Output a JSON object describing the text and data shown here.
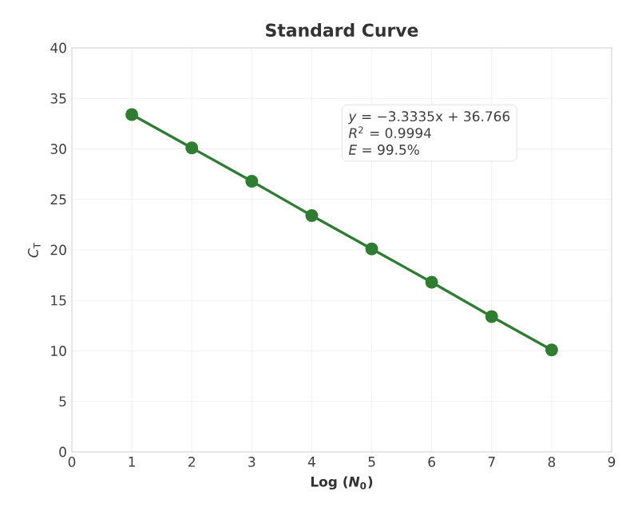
{
  "chart_data": {
    "type": "line",
    "title": "Standard Curve",
    "xlabel": "Log (*N*$_{0}$)",
    "ylabel": "*C*$_{T}$",
    "x": [
      1,
      2,
      3,
      4,
      5,
      6,
      7,
      8
    ],
    "series": [
      {
        "color": "#2e7d32",
        "values": [
          33.4,
          30.1,
          26.8,
          23.4,
          20.1,
          16.8,
          13.4,
          10.1
        ]
      }
    ],
    "xlim": [
      0,
      9
    ],
    "ylim": [
      0,
      40
    ],
    "xticks": [
      0,
      1,
      2,
      3,
      4,
      5,
      6,
      7,
      8,
      9
    ],
    "yticks": [
      0,
      5,
      10,
      15,
      20,
      25,
      30,
      35,
      40
    ],
    "grid": true,
    "marker": "circle",
    "line_style": "solid",
    "annotations": [
      "*y* = −3.3335x + 36.766",
      "*R*$^{2}$ = 0.9994",
      "*E* = 99.5%"
    ]
  }
}
